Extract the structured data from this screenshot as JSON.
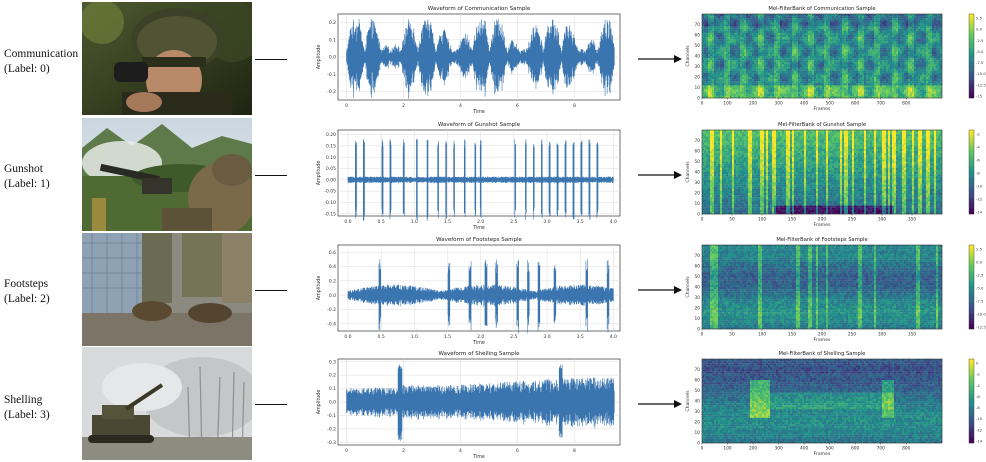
{
  "rows": [
    {
      "label_line1": "Communication",
      "label_line2": "(Label: 0)",
      "photo_scene": "soldier-helmet-radio",
      "waveform": {
        "title": "Waveform of Communication Sample",
        "xlabel": "Time",
        "ylabel": "Amplitude",
        "xlim": [
          -0.3,
          9.6
        ],
        "ylim": [
          -0.25,
          0.25
        ],
        "xticks": [
          "0",
          "2",
          "4",
          "6",
          "8"
        ],
        "xtick_values": [
          0,
          2,
          4,
          6,
          8
        ],
        "yticks": [
          "-0.2",
          "-0.1",
          "0.0",
          "0.1",
          "0.2"
        ],
        "ytick_values": [
          -0.2,
          -0.1,
          0.0,
          0.1,
          0.2
        ],
        "signal": "bursty-speech",
        "duration": 9.4,
        "peak": 0.22
      },
      "spectrogram": {
        "title": "Mel-FilterBank of Communication Sample",
        "xlabel": "Frames",
        "ylabel": "Channels",
        "xticks": [
          "0",
          "100",
          "200",
          "300",
          "400",
          "500",
          "600",
          "700",
          "800"
        ],
        "xtick_values": [
          0,
          100,
          200,
          300,
          400,
          500,
          600,
          700,
          800
        ],
        "xmax": 940,
        "yticks": [
          "0",
          "10",
          "20",
          "30",
          "40",
          "50",
          "60",
          "70"
        ],
        "ytick_values": [
          0,
          10,
          20,
          30,
          40,
          50,
          60,
          70
        ],
        "ymax": 80,
        "cbar_ticks": [
          "2.5",
          "0.0",
          "-2.5",
          "-5.0",
          "-7.5",
          "-10.0",
          "-12.5",
          "-15"
        ],
        "pattern": "speech"
      }
    },
    {
      "label_line1": "Gunshot",
      "label_line2": "(Label: 1)",
      "photo_scene": "machine-gun-field",
      "waveform": {
        "title": "Waveform of Gunshot Sample",
        "xlabel": "Time",
        "ylabel": "Amplitude",
        "xlim": [
          -0.15,
          4.1
        ],
        "ylim": [
          -0.16,
          0.22
        ],
        "xticks": [
          "0.0",
          "0.5",
          "1.0",
          "1.5",
          "2.0",
          "2.5",
          "3.0",
          "3.5",
          "4.0"
        ],
        "xtick_values": [
          0,
          0.5,
          1.0,
          1.5,
          2.0,
          2.5,
          3.0,
          3.5,
          4.0
        ],
        "yticks": [
          "-0.15",
          "-0.10",
          "-0.05",
          "0.00",
          "0.05",
          "0.10",
          "0.15",
          "0.20"
        ],
        "ytick_values": [
          -0.15,
          -0.1,
          -0.05,
          0.0,
          0.05,
          0.1,
          0.15,
          0.2
        ],
        "signal": "impulses",
        "duration": 4.0,
        "peak": 0.18
      },
      "spectrogram": {
        "title": "Mel-FilterBank of Gunshot Sample",
        "xlabel": "Frames",
        "ylabel": "Channels",
        "xticks": [
          "0",
          "50",
          "100",
          "150",
          "200",
          "250",
          "300",
          "350"
        ],
        "xtick_values": [
          0,
          50,
          100,
          150,
          200,
          250,
          300,
          350
        ],
        "xmax": 400,
        "yticks": [
          "0",
          "10",
          "20",
          "30",
          "40",
          "50",
          "60",
          "70"
        ],
        "ytick_values": [
          0,
          10,
          20,
          30,
          40,
          50,
          60,
          70
        ],
        "ymax": 80,
        "cbar_ticks": [
          "-2",
          "-4",
          "-6",
          "-8",
          "-10",
          "-12",
          "-14"
        ],
        "pattern": "gunshot"
      }
    },
    {
      "label_line1": "Footsteps",
      "label_line2": "(Label: 2)",
      "photo_scene": "boots-running",
      "waveform": {
        "title": "Waveform of Footsteps Sample",
        "xlabel": "Time",
        "ylabel": "Amplitude",
        "xlim": [
          -0.15,
          4.1
        ],
        "ylim": [
          -0.5,
          0.7
        ],
        "xticks": [
          "0.0",
          "0.5",
          "1.0",
          "1.5",
          "2.0",
          "2.5",
          "3.0",
          "3.5",
          "4.0"
        ],
        "xtick_values": [
          0,
          0.5,
          1.0,
          1.5,
          2.0,
          2.5,
          3.0,
          3.5,
          4.0
        ],
        "yticks": [
          "-0.4",
          "-0.2",
          "0.0",
          "0.2",
          "0.4",
          "0.6"
        ],
        "ytick_values": [
          -0.4,
          -0.2,
          0.0,
          0.2,
          0.4,
          0.6
        ],
        "signal": "footsteps",
        "duration": 4.0,
        "peak": 0.5
      },
      "spectrogram": {
        "title": "Mel-FilterBank of Footsteps Sample",
        "xlabel": "Frames",
        "ylabel": "Channels",
        "xticks": [
          "0",
          "50",
          "100",
          "150",
          "200",
          "250",
          "300",
          "350"
        ],
        "xtick_values": [
          0,
          50,
          100,
          150,
          200,
          250,
          300,
          350
        ],
        "xmax": 400,
        "yticks": [
          "0",
          "10",
          "20",
          "30",
          "40",
          "50",
          "60",
          "70"
        ],
        "ytick_values": [
          0,
          10,
          20,
          30,
          40,
          50,
          60,
          70
        ],
        "ymax": 80,
        "cbar_ticks": [
          "2.5",
          "0.0",
          "-2.5",
          "-5.0",
          "-7.5",
          "-10.0",
          "-12.5"
        ],
        "pattern": "footsteps"
      }
    },
    {
      "label_line1": "Shelling",
      "label_line2": "(Label: 3)",
      "photo_scene": "artillery-smoke",
      "waveform": {
        "title": "Waveform of Shelling Sample",
        "xlabel": "Time",
        "ylabel": "Amplitude",
        "xlim": [
          -0.3,
          9.6
        ],
        "ylim": [
          -0.32,
          0.32
        ],
        "xticks": [
          "0",
          "2",
          "4",
          "6",
          "8"
        ],
        "xtick_values": [
          0,
          2,
          4,
          6,
          8
        ],
        "yticks": [
          "-0.3",
          "-0.2",
          "-0.1",
          "0.0",
          "0.1",
          "0.2",
          "0.3"
        ],
        "ytick_values": [
          -0.3,
          -0.2,
          -0.1,
          0.0,
          0.1,
          0.2,
          0.3
        ],
        "signal": "shelling",
        "duration": 9.4,
        "peak": 0.28
      },
      "spectrogram": {
        "title": "Mel-FilterBank of Shelling Sample",
        "xlabel": "Frames",
        "ylabel": "Channels",
        "xticks": [
          "0",
          "100",
          "200",
          "300",
          "400",
          "500",
          "600",
          "700",
          "800"
        ],
        "xtick_values": [
          0,
          100,
          200,
          300,
          400,
          500,
          600,
          700,
          800
        ],
        "xmax": 940,
        "yticks": [
          "0",
          "10",
          "20",
          "30",
          "40",
          "50",
          "60",
          "70"
        ],
        "ytick_values": [
          0,
          10,
          20,
          30,
          40,
          50,
          60,
          70
        ],
        "ymax": 80,
        "cbar_ticks": [
          "0",
          "-2",
          "-4",
          "-6",
          "-8",
          "-10",
          "-12",
          "-14"
        ],
        "pattern": "shelling"
      }
    }
  ],
  "colors": {
    "wave": "#3a75b0",
    "axis": "#333333",
    "grid": "#dcdcdc",
    "arrow": "#111111"
  }
}
